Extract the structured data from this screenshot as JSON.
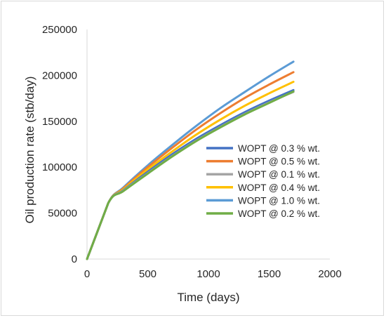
{
  "chart_data": {
    "type": "line",
    "title": "",
    "xlabel": "Time (days)",
    "ylabel": "Oil production rate (stb/day)",
    "xlim": [
      0,
      2000
    ],
    "ylim": [
      0,
      250000
    ],
    "xticks": [
      "0",
      "500",
      "1000",
      "1500",
      "2000"
    ],
    "yticks": [
      "0",
      "50000",
      "100000",
      "150000",
      "200000",
      "250000"
    ],
    "grid": false,
    "legend_position": "right",
    "series": [
      {
        "name": "WOPT @ 0.3 % wt.",
        "color": "#4472C4",
        "x": [
          0,
          175,
          300,
          500,
          700,
          900,
          1100,
          1300,
          1500,
          1700
        ],
        "y": [
          0,
          61000,
          75000,
          95000,
          114000,
          131000,
          146000,
          160000,
          172500,
          184000
        ]
      },
      {
        "name": "WOPT @ 0.5 % wt.",
        "color": "#ED7D31",
        "x": [
          0,
          175,
          300,
          500,
          700,
          900,
          1100,
          1300,
          1500,
          1700
        ],
        "y": [
          0,
          61000,
          77000,
          100000,
          121000,
          141000,
          159000,
          175500,
          190000,
          203500
        ]
      },
      {
        "name": "WOPT @ 0.1 % wt.",
        "color": "#A5A5A5",
        "x": [
          0,
          175,
          300,
          500,
          700,
          900,
          1100,
          1300,
          1500,
          1700
        ],
        "y": [
          0,
          61000,
          74500,
          93500,
          112000,
          129000,
          144000,
          158000,
          170500,
          182000
        ]
      },
      {
        "name": "WOPT @ 0.4 % wt.",
        "color": "#FFC000",
        "x": [
          0,
          175,
          300,
          500,
          700,
          900,
          1100,
          1300,
          1500,
          1700
        ],
        "y": [
          0,
          61000,
          76000,
          97500,
          117000,
          135500,
          152000,
          167000,
          180500,
          193000
        ]
      },
      {
        "name": "WOPT @ 1.0 % wt.",
        "color": "#5B9BD5",
        "x": [
          0,
          175,
          300,
          500,
          700,
          900,
          1100,
          1300,
          1500,
          1700
        ],
        "y": [
          0,
          61000,
          78000,
          102000,
          124000,
          145000,
          164500,
          182000,
          199000,
          215000
        ]
      },
      {
        "name": "WOPT @ 0.2 % wt.",
        "color": "#70AD47",
        "x": [
          0,
          175,
          300,
          500,
          700,
          900,
          1100,
          1300,
          1500,
          1700
        ],
        "y": [
          0,
          61000,
          74000,
          93000,
          111500,
          128500,
          143500,
          157500,
          170000,
          182500
        ]
      }
    ]
  }
}
